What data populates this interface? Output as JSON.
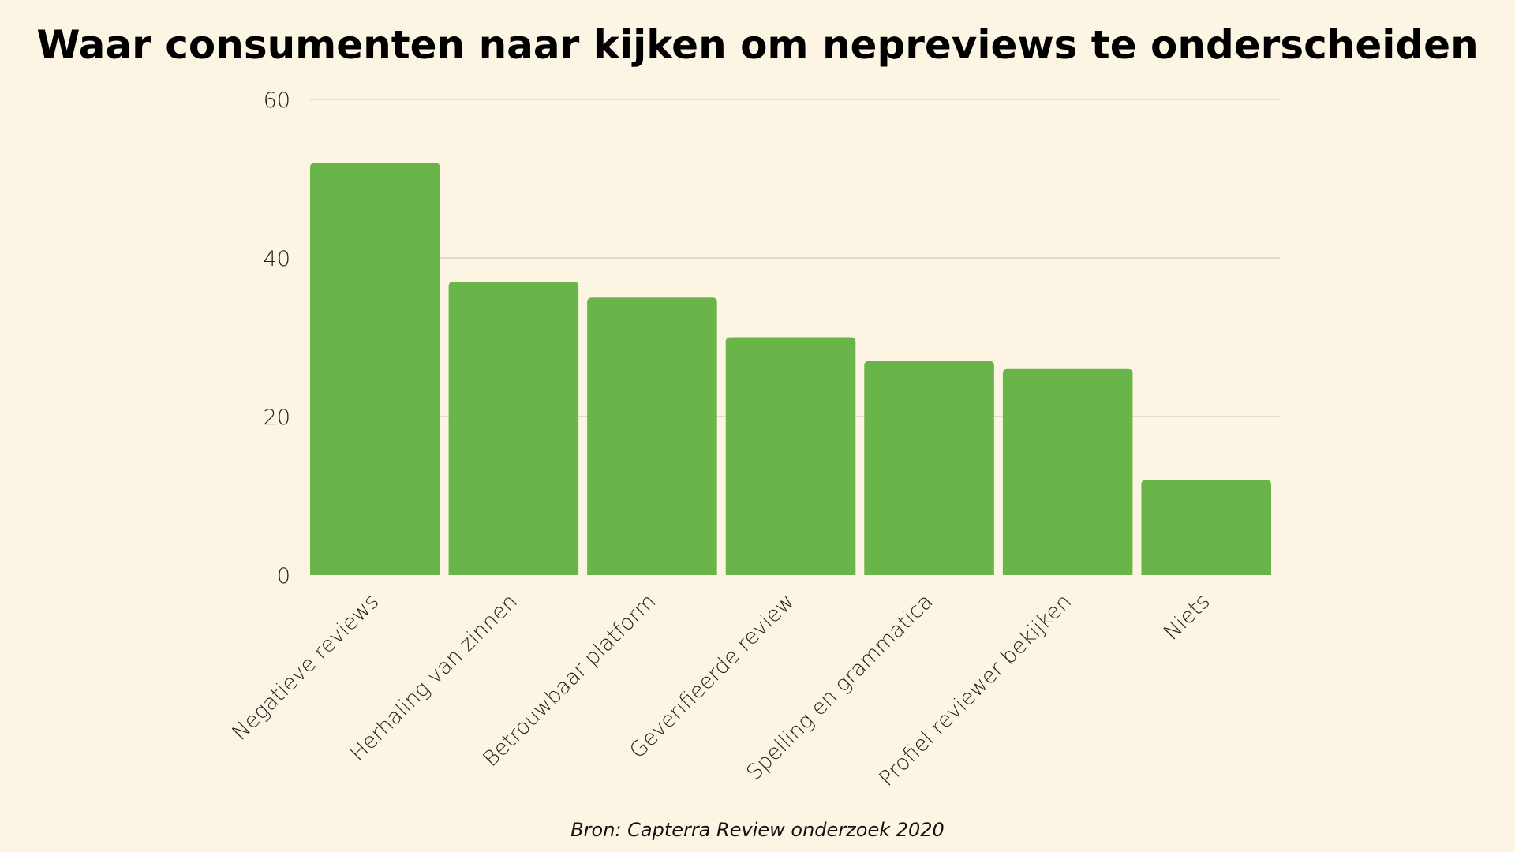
{
  "title": "Waar consumenten naar kijken om nepreviews te onderscheiden",
  "source": "Bron: Capterra Review onderzoek 2020",
  "colors": {
    "background": "#fdf5e4",
    "bar": "#69b54a",
    "grid": "#c9c4b5",
    "text": "#1a1a1a"
  },
  "chart_data": {
    "type": "bar",
    "categories": [
      "Negatieve reviews",
      "Herhaling van zinnen",
      "Betrouwbaar platform",
      "Geverifieerde review",
      "Spelling en grammatica",
      "Profiel reviewer bekijken",
      "Niets"
    ],
    "values": [
      52,
      37,
      35,
      30,
      27,
      26,
      12
    ],
    "title": "Waar consumenten naar kijken om nepreviews te onderscheiden",
    "xlabel": "",
    "ylabel": "",
    "ylim": [
      0,
      60
    ],
    "yticks": [
      0,
      20,
      40,
      60
    ],
    "grid": true,
    "legend": "none"
  }
}
